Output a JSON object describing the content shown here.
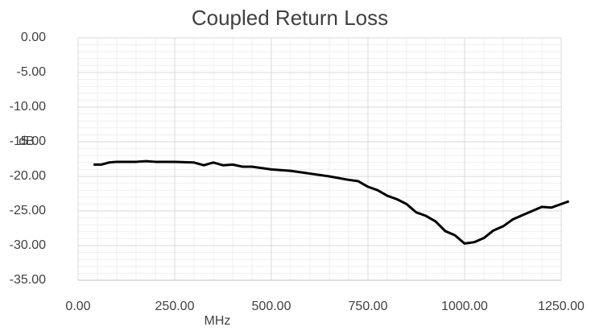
{
  "chart_data": {
    "type": "line",
    "title": "Coupled Return Loss",
    "x_label": "MHz",
    "y_label": "dB",
    "x": [
      40,
      60,
      80,
      100,
      150,
      175,
      200,
      250,
      300,
      325,
      350,
      375,
      400,
      425,
      450,
      500,
      550,
      600,
      650,
      700,
      725,
      750,
      775,
      800,
      825,
      850,
      875,
      900,
      925,
      950,
      975,
      1000,
      1025,
      1050,
      1075,
      1100,
      1125,
      1150,
      1175,
      1200,
      1225,
      1250,
      1270
    ],
    "series": [
      {
        "name": "Coupled Return Loss",
        "color": "#000000",
        "values": [
          -18.3,
          -18.3,
          -18.0,
          -17.9,
          -17.9,
          -17.8,
          -17.9,
          -17.9,
          -18.0,
          -18.4,
          -18.0,
          -18.4,
          -18.3,
          -18.6,
          -18.6,
          -19.0,
          -19.2,
          -19.6,
          -20.0,
          -20.5,
          -20.7,
          -21.5,
          -22.0,
          -22.8,
          -23.3,
          -24.0,
          -25.2,
          -25.7,
          -26.5,
          -27.9,
          -28.5,
          -29.7,
          -29.5,
          -28.9,
          -27.8,
          -27.2,
          -26.2,
          -25.6,
          -25.0,
          -24.4,
          -24.5,
          -24.0,
          -23.6
        ]
      }
    ],
    "xlim": [
      0,
      1250
    ],
    "xticks": [
      {
        "value": 0,
        "label": "0.00"
      },
      {
        "value": 250,
        "label": "250.00"
      },
      {
        "value": 500,
        "label": "500.00"
      },
      {
        "value": 750,
        "label": "750.00"
      },
      {
        "value": 1000,
        "label": "1000.00"
      },
      {
        "value": 1250,
        "label": "1250.00"
      }
    ],
    "ylim": [
      -35,
      0
    ],
    "yticks": [
      {
        "value": 0,
        "label": "0.00"
      },
      {
        "value": -5,
        "label": "-5.00"
      },
      {
        "value": -10,
        "label": "-10.00"
      },
      {
        "value": -15,
        "label": "-15.00"
      },
      {
        "value": -20,
        "label": "-20.00"
      },
      {
        "value": -25,
        "label": "-25.00"
      },
      {
        "value": -30,
        "label": "-30.00"
      },
      {
        "value": -35,
        "label": "-35.00"
      }
    ],
    "grid": true,
    "minor_grid": true
  }
}
